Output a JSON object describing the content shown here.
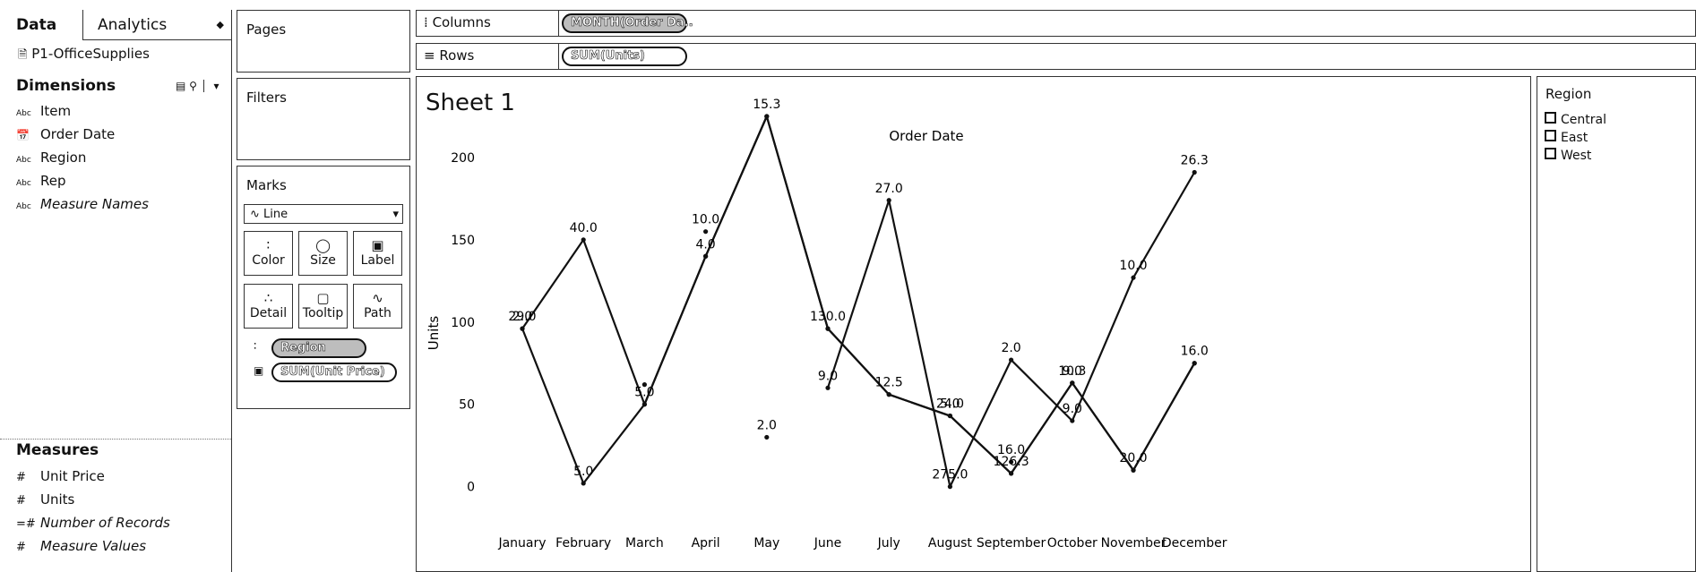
{
  "data_pane": {
    "tab_data": "Data",
    "tab_analytics": "Analytics",
    "datasource": "P1-OfficeSupplies",
    "dimensions_header": "Dimensions",
    "dimensions": [
      {
        "type": "Abc",
        "label": "Item"
      },
      {
        "type": "date",
        "label": "Order Date"
      },
      {
        "type": "Abc",
        "label": "Region"
      },
      {
        "type": "Abc",
        "label": "Rep"
      },
      {
        "type": "Abc",
        "label": "Measure Names"
      }
    ],
    "measures_header": "Measures",
    "measures": [
      {
        "type": "#",
        "label": "Unit Price"
      },
      {
        "type": "#",
        "label": "Units"
      },
      {
        "type": "=#",
        "label": "Number of Records"
      },
      {
        "type": "#",
        "label": "Measure Values"
      }
    ]
  },
  "cards": {
    "pages": "Pages",
    "filters": "Filters",
    "marks": "Marks",
    "mark_type": "Line",
    "buttons": {
      "color": "Color",
      "size": "Size",
      "label": "Label",
      "detail": "Detail",
      "tooltip": "Tooltip",
      "path": "Path"
    },
    "pill_region": "Region",
    "pill_label": "SUM(Unit Price)"
  },
  "shelves": {
    "columns_label": "Columns",
    "columns_pill": "MONTH(Order Da..",
    "rows_label": "Rows",
    "rows_pill": "SUM(Units)"
  },
  "sheet": {
    "title": "Sheet 1"
  },
  "legend": {
    "title": "Region",
    "items": [
      "Central",
      "East",
      "West"
    ]
  },
  "colors": {
    "ink": "#111111",
    "border": "#333333",
    "pill_dim": "#bdbdbd"
  },
  "chart_data": {
    "type": "line",
    "title": "Order Date",
    "ylabel": "Units",
    "ylim": [
      -10,
      225
    ],
    "yticks": [
      0,
      50,
      100,
      150,
      200
    ],
    "categories": [
      "January",
      "February",
      "March",
      "April",
      "May",
      "June",
      "July",
      "August",
      "September",
      "October",
      "November",
      "December"
    ],
    "series": [
      {
        "name": "Central",
        "values": [
          96,
          2,
          50,
          140,
          225,
          96,
          56,
          43,
          8,
          63,
          10,
          75
        ],
        "labels": [
          "29.0",
          "5.0",
          "5.0",
          "4.0",
          "15.3",
          "130.0",
          "12.5",
          "5.0",
          "126.3",
          "10.3",
          "20.0",
          "16.0"
        ]
      },
      {
        "name": "East",
        "values": [
          96,
          150,
          50,
          140,
          225,
          96,
          56,
          43,
          8,
          63,
          10,
          75
        ],
        "labels": [
          "2.0",
          "40.0",
          "",
          "",
          "",
          "",
          "",
          "",
          "",
          "",
          "",
          ""
        ]
      },
      {
        "name": "West",
        "values": [
          null,
          null,
          null,
          null,
          null,
          60,
          174,
          0,
          77,
          40,
          127,
          191
        ],
        "labels": [
          "",
          "",
          "",
          "",
          "",
          "9.0",
          "27.0",
          "275.0",
          "2.0",
          "9.0",
          "10.0",
          "26.3"
        ]
      }
    ],
    "extra_points": [
      {
        "category": "March",
        "value": 62,
        "label": ""
      },
      {
        "category": "April",
        "value": 155,
        "label": "10.0"
      },
      {
        "category": "May",
        "value": 30,
        "label": "2.0"
      },
      {
        "category": "August",
        "value": 43,
        "label": "24.0"
      },
      {
        "category": "September",
        "value": 15,
        "label": "16.0"
      },
      {
        "category": "October",
        "value": 63,
        "label": "9.0"
      }
    ]
  }
}
